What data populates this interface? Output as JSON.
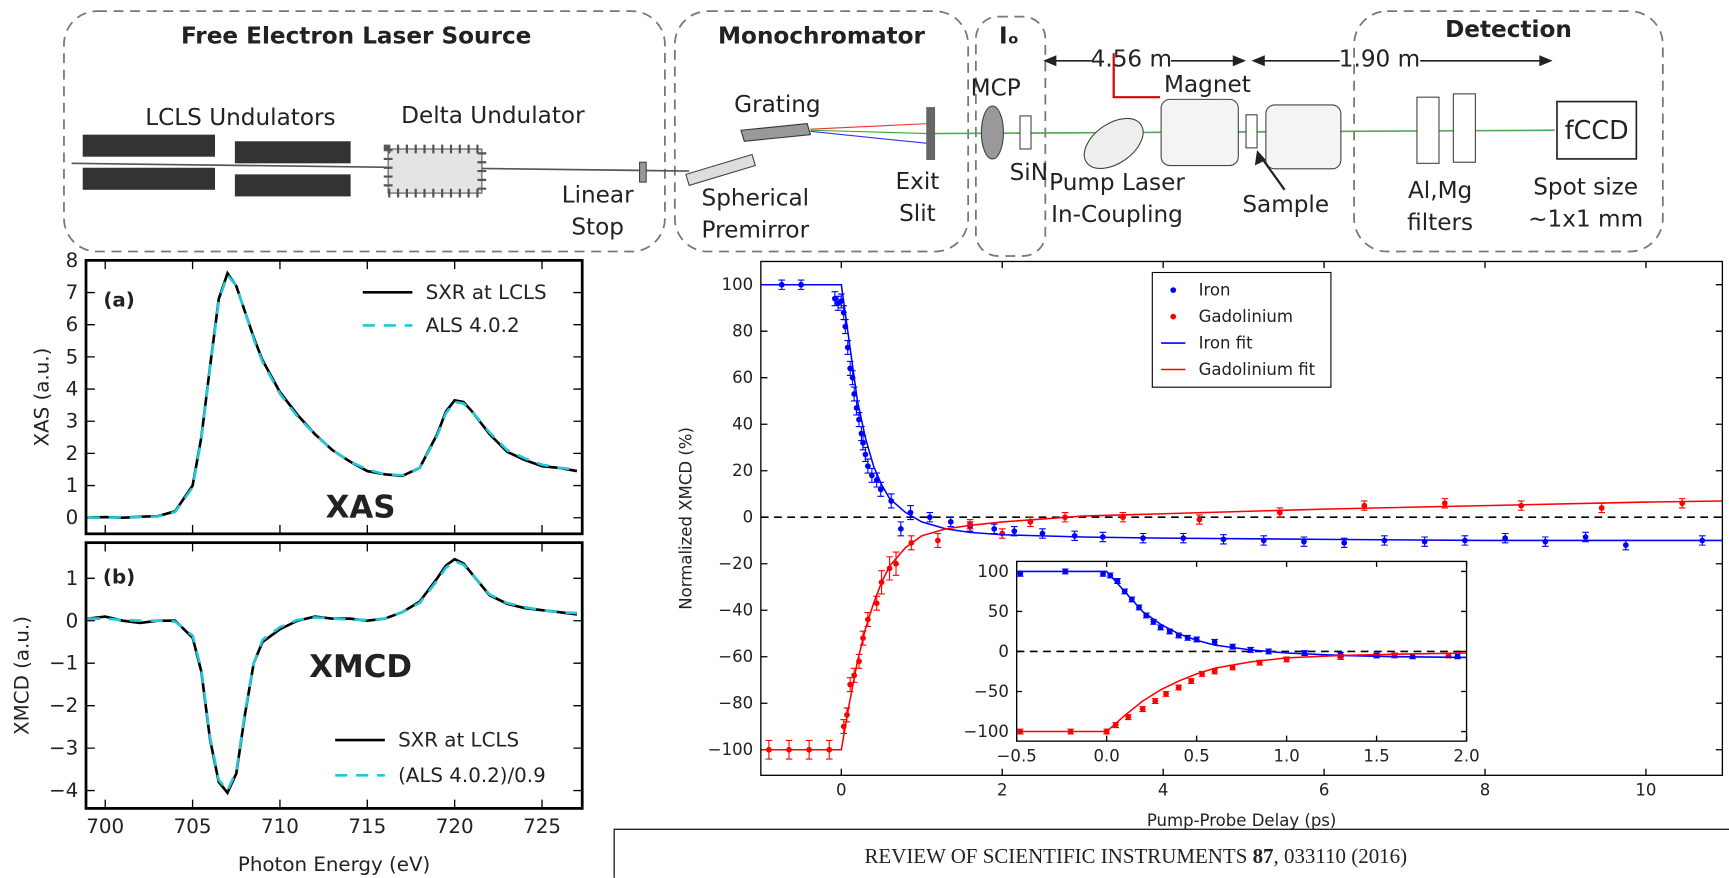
{
  "diagram": {
    "sections": {
      "fel": "Free Electron Laser Source",
      "mono": "Monochromator",
      "io": "Iₒ",
      "detection": "Detection"
    },
    "labels": {
      "lcls_undulators": "LCLS Undulators",
      "delta_undulator": "Delta Undulator",
      "linear_stop": [
        "Linear",
        "Stop"
      ],
      "grating": "Grating",
      "spherical_premirror": [
        "Spherical",
        "Premirror"
      ],
      "exit_slit": [
        "Exit",
        "Slit"
      ],
      "mcp": "MCP",
      "sin": "SiN",
      "pump_laser": [
        "Pump Laser",
        "In-Coupling"
      ],
      "magnet": "Magnet",
      "sample": "Sample",
      "filters": [
        "Al,Mg",
        "filters"
      ],
      "fccd": "fCCD",
      "spot_size": [
        "Spot size",
        "~1x1 mm"
      ],
      "distance_1": "4.56 m",
      "distance_2": "1.90 m"
    }
  },
  "chart_data": [
    {
      "type": "line",
      "panel_label": "(a)",
      "annotation": "XAS",
      "ylabel": "XAS (a.u.)",
      "x": [
        699,
        700,
        701,
        702,
        703,
        704,
        705,
        705.5,
        706,
        706.5,
        707,
        707.5,
        708,
        708.5,
        709,
        710,
        711,
        712,
        713,
        714,
        715,
        716,
        717,
        718,
        719,
        719.5,
        720,
        720.5,
        721,
        722,
        723,
        724,
        725,
        726,
        727
      ],
      "series": [
        {
          "name": "SXR at LCLS",
          "color": "#000000",
          "dash": false,
          "values": [
            0,
            0.02,
            0,
            0.03,
            0.05,
            0.2,
            1.0,
            2.5,
            4.7,
            6.8,
            7.6,
            7.2,
            6.4,
            5.6,
            4.9,
            3.9,
            3.2,
            2.6,
            2.1,
            1.75,
            1.45,
            1.35,
            1.3,
            1.55,
            2.6,
            3.3,
            3.65,
            3.6,
            3.3,
            2.6,
            2.05,
            1.8,
            1.6,
            1.55,
            1.45
          ]
        },
        {
          "name": "ALS 4.0.2",
          "color": "#22c8d8",
          "dash": true,
          "values": [
            0,
            0,
            0.02,
            0.02,
            0.04,
            0.18,
            0.95,
            2.45,
            4.65,
            6.75,
            7.55,
            7.2,
            6.4,
            5.55,
            4.85,
            3.85,
            3.15,
            2.6,
            2.1,
            1.75,
            1.5,
            1.35,
            1.32,
            1.55,
            2.55,
            3.25,
            3.6,
            3.55,
            3.3,
            2.65,
            2.1,
            1.85,
            1.65,
            1.55,
            1.5
          ]
        }
      ],
      "xlim": [
        698.9,
        727.3
      ],
      "ylim": [
        -0.5,
        8
      ],
      "xticks": [
        700,
        705,
        710,
        715,
        720,
        725
      ],
      "yticks": [
        0,
        1,
        2,
        3,
        4,
        5,
        6,
        7,
        8
      ],
      "show_xtick_labels": false,
      "legend": "upper right"
    },
    {
      "type": "line",
      "panel_label": "(b)",
      "annotation": "XMCD",
      "ylabel": "XMCD (a.u.)",
      "xlabel": "Photon Energy (eV)",
      "x": [
        699,
        700,
        701,
        702,
        703,
        704,
        705,
        705.5,
        706,
        706.5,
        707,
        707.5,
        708,
        708.5,
        709,
        710,
        711,
        712,
        713,
        714,
        715,
        716,
        717,
        718,
        719,
        719.5,
        720,
        720.5,
        721,
        722,
        723,
        724,
        725,
        726,
        727
      ],
      "series": [
        {
          "name": "SXR at LCLS",
          "color": "#000000",
          "dash": false,
          "values": [
            0.05,
            0.1,
            0,
            -0.05,
            0,
            0,
            -0.4,
            -1.2,
            -2.8,
            -3.8,
            -4.05,
            -3.6,
            -2.2,
            -1.0,
            -0.5,
            -0.2,
            0,
            0.1,
            0.05,
            0.05,
            0,
            0.05,
            0.2,
            0.45,
            1.0,
            1.3,
            1.45,
            1.35,
            1.1,
            0.6,
            0.4,
            0.3,
            0.25,
            0.2,
            0.15
          ]
        },
        {
          "name": "(ALS 4.0.2)/0.9",
          "color": "#22c8d8",
          "dash": true,
          "values": [
            0.05,
            0.05,
            0.02,
            0,
            0,
            -0.02,
            -0.35,
            -1.15,
            -2.75,
            -3.75,
            -4.0,
            -3.55,
            -2.15,
            -1.0,
            -0.45,
            -0.15,
            0.02,
            0.08,
            0.05,
            0.03,
            0.02,
            0.05,
            0.2,
            0.42,
            0.95,
            1.25,
            1.4,
            1.32,
            1.1,
            0.62,
            0.42,
            0.32,
            0.25,
            0.2,
            0.18
          ]
        }
      ],
      "xlim": [
        698.9,
        727.3
      ],
      "ylim": [
        -4.42,
        1.84
      ],
      "xticks": [
        700,
        705,
        710,
        715,
        720,
        725
      ],
      "yticks": [
        {
          "value": -4,
          "label": "−4"
        },
        {
          "value": -3,
          "label": "−3"
        },
        {
          "value": -2,
          "label": "−2"
        },
        {
          "value": -1,
          "label": "−1"
        },
        0,
        1
      ],
      "show_xtick_labels": true,
      "legend": "lower right"
    },
    {
      "type": "scatter",
      "xlabel": "Pump-Probe Delay (ps)",
      "ylabel": "Normalized XMCD (%)",
      "reference_line": 0,
      "series": [
        {
          "name": "Iron",
          "color": "#0000ff",
          "mode": "points",
          "x": [
            -0.74,
            -0.5,
            -0.08,
            -0.04,
            0,
            0.03,
            0.05,
            0.08,
            0.11,
            0.14,
            0.16,
            0.19,
            0.22,
            0.25,
            0.27,
            0.3,
            0.33,
            0.38,
            0.44,
            0.49,
            0.62,
            0.74,
            0.86,
            1.1,
            1.36,
            1.6,
            1.9,
            2.15,
            2.5,
            2.9,
            3.25,
            3.75,
            4.25,
            4.75,
            5.25,
            5.75,
            6.25,
            6.75,
            7.25,
            7.75,
            8.25,
            8.75,
            9.25,
            9.75,
            10.7
          ],
          "values": [
            100,
            100,
            94,
            92,
            93,
            88,
            82,
            73,
            64,
            60,
            53,
            47,
            42,
            36,
            32,
            27,
            22,
            18,
            16,
            12,
            7,
            -5,
            2,
            0,
            -2,
            -4,
            -5,
            -6,
            -7,
            -8,
            -8.5,
            -9,
            -9,
            -9.5,
            -10,
            -10.5,
            -11,
            -10,
            -10.5,
            -10,
            -9,
            -10.5,
            -8.5,
            -12,
            -10
          ],
          "errors": [
            2,
            2,
            3,
            3,
            3,
            3,
            3,
            3,
            3,
            3,
            3,
            3,
            3,
            3,
            3,
            3,
            3,
            3,
            3,
            3,
            3,
            3,
            3,
            2,
            2,
            2,
            2,
            2,
            2,
            2,
            2,
            2,
            2,
            2,
            2,
            2,
            2,
            2,
            2,
            2,
            2,
            2,
            2,
            2,
            2
          ]
        },
        {
          "name": "Gadolinium",
          "color": "#ff0000",
          "mode": "points",
          "x": [
            -0.9,
            -0.65,
            -0.4,
            -0.15,
            0.03,
            0.07,
            0.11,
            0.16,
            0.22,
            0.27,
            0.33,
            0.44,
            0.5,
            0.6,
            0.68,
            0.87,
            1.2,
            1.6,
            2.0,
            2.35,
            2.78,
            3.5,
            4.45,
            5.45,
            6.5,
            7.5,
            8.45,
            9.45,
            10.45
          ],
          "values": [
            -100,
            -100,
            -100,
            -100,
            -90,
            -85,
            -72,
            -68,
            -62,
            -52,
            -44,
            -37,
            -28,
            -22,
            -20,
            -11,
            -10,
            -3,
            -7,
            -2,
            0,
            0,
            -1,
            2,
            5,
            6,
            5,
            4,
            6
          ],
          "errors": [
            4,
            4,
            4,
            4,
            3,
            3,
            3,
            3,
            3,
            3,
            3,
            3,
            5,
            5,
            5,
            3,
            3,
            2,
            2,
            2,
            2,
            2,
            2,
            2,
            2,
            2,
            2,
            2,
            2
          ]
        },
        {
          "name": "Iron fit",
          "color": "#0000ff",
          "mode": "line",
          "x": [
            -1,
            0,
            0.1,
            0.2,
            0.3,
            0.4,
            0.5,
            0.6,
            0.8,
            1.0,
            1.3,
            1.6,
            2,
            3,
            4,
            6,
            8,
            10,
            10.95
          ],
          "values": [
            100,
            100,
            75,
            50,
            34,
            22,
            14,
            8,
            2,
            -2,
            -5,
            -6.5,
            -7.5,
            -8.5,
            -9,
            -9.5,
            -10,
            -10,
            -10
          ]
        },
        {
          "name": "Gadolinium fit",
          "color": "#ff0000",
          "mode": "line",
          "x": [
            -1,
            0,
            0.1,
            0.2,
            0.3,
            0.4,
            0.5,
            0.6,
            0.8,
            1.0,
            1.3,
            1.6,
            2,
            3,
            4,
            6,
            8,
            10,
            10.95
          ],
          "values": [
            -100,
            -100,
            -80,
            -62,
            -48,
            -37,
            -28,
            -21,
            -13,
            -8,
            -5,
            -3.5,
            -2,
            0.5,
            1.5,
            3.5,
            5,
            6.5,
            7
          ]
        }
      ],
      "xlim": [
        -1,
        10.95
      ],
      "ylim": [
        -111,
        110
      ],
      "xticks": [
        0,
        2,
        4,
        6,
        8,
        10
      ],
      "yticks": [
        {
          "value": -100,
          "label": "−100"
        },
        {
          "value": -80,
          "label": "−80"
        },
        {
          "value": -60,
          "label": "−60"
        },
        {
          "value": -40,
          "label": "−40"
        },
        {
          "value": -20,
          "label": "−20"
        },
        0,
        20,
        40,
        60,
        80,
        100
      ],
      "legend": "upper center"
    },
    {
      "type": "scatter",
      "reference_line": 0,
      "series": [
        {
          "color": "#0000ff",
          "mode": "points",
          "x": [
            -0.48,
            -0.23,
            -0.02,
            0.02,
            0.06,
            0.1,
            0.14,
            0.18,
            0.22,
            0.26,
            0.3,
            0.35,
            0.4,
            0.45,
            0.5,
            0.6,
            0.7,
            0.8,
            0.9,
            1.1,
            1.3,
            1.5,
            1.7,
            1.95
          ],
          "values": [
            97,
            100,
            97,
            95,
            88,
            75,
            65,
            55,
            45,
            37,
            30,
            25,
            20,
            17,
            15,
            12,
            6,
            2,
            0,
            -2,
            -4,
            -5,
            -6,
            -6
          ],
          "errors": [
            3,
            3,
            3,
            3,
            3,
            3,
            3,
            3,
            3,
            3,
            3,
            3,
            3,
            3,
            3,
            3,
            3,
            3,
            3,
            3,
            3,
            3,
            3,
            3
          ]
        },
        {
          "color": "#ff0000",
          "mode": "points",
          "x": [
            -0.48,
            -0.2,
            0.0,
            0.05,
            0.12,
            0.2,
            0.27,
            0.33,
            0.4,
            0.47,
            0.53,
            0.6,
            0.7,
            0.85,
            1.0,
            1.3,
            1.6,
            1.9
          ],
          "values": [
            -100,
            -100,
            -100,
            -92,
            -82,
            -72,
            -62,
            -53,
            -45,
            -37,
            -28,
            -25,
            -20,
            -14,
            -10,
            -7,
            -5,
            -5
          ],
          "errors": [
            3,
            3,
            3,
            3,
            3,
            3,
            3,
            3,
            3,
            3,
            3,
            3,
            3,
            3,
            3,
            3,
            3,
            3
          ]
        },
        {
          "color": "#0000ff",
          "mode": "line",
          "x": [
            -0.5,
            0,
            0.1,
            0.2,
            0.3,
            0.4,
            0.5,
            0.6,
            0.8,
            1.0,
            1.3,
            1.6,
            2.0
          ],
          "values": [
            100,
            100,
            75,
            50,
            34,
            22,
            14,
            8,
            2,
            -2,
            -5,
            -6.5,
            -7.5
          ]
        },
        {
          "color": "#ff0000",
          "mode": "line",
          "x": [
            -0.5,
            0,
            0.1,
            0.2,
            0.3,
            0.4,
            0.5,
            0.6,
            0.8,
            1.0,
            1.3,
            1.6,
            2.0
          ],
          "values": [
            -100,
            -100,
            -80,
            -62,
            -48,
            -37,
            -28,
            -21,
            -13,
            -8,
            -5,
            -3.5,
            -2
          ]
        }
      ],
      "xlim": [
        -0.5,
        2.0
      ],
      "ylim": [
        -112,
        112.5
      ],
      "xticks": [
        {
          "value": -0.5,
          "label": "−0.5"
        },
        {
          "value": 0,
          "label": "0.0"
        },
        {
          "value": 0.5,
          "label": "0.5"
        },
        {
          "value": 1,
          "label": "1.0"
        },
        {
          "value": 1.5,
          "label": "1.5"
        },
        {
          "value": 2,
          "label": "2.0"
        }
      ],
      "yticks": [
        {
          "value": -100,
          "label": "−100"
        },
        {
          "value": -50,
          "label": "−50"
        },
        0,
        50,
        100
      ]
    }
  ],
  "footer": {
    "journal": "REVIEW OF SCIENTIFIC INSTRUMENTS",
    "volume": "87",
    "citation": ", 033110 (2016)"
  }
}
